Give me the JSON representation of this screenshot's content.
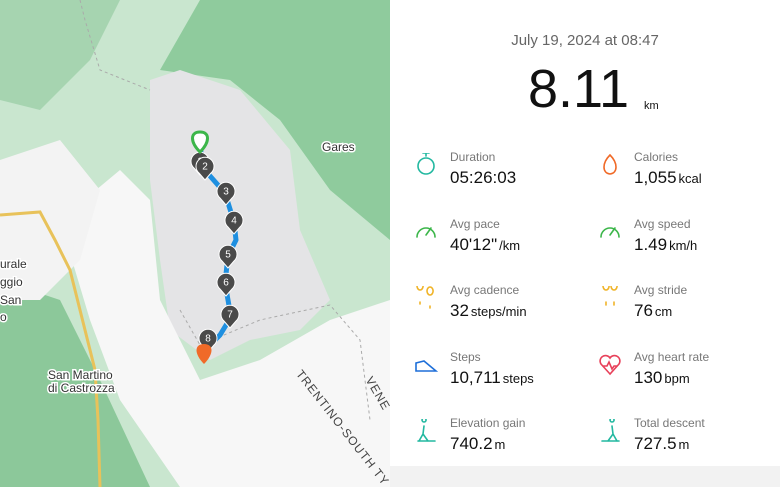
{
  "map": {
    "labels": [
      "Gares",
      "San Martino",
      "di Castrozza",
      "urale",
      "ggio",
      "San",
      "o"
    ],
    "region_labels": [
      "TRENTINO-SOUTH TY",
      "VENE"
    ],
    "markers": [
      "1",
      "2",
      "3",
      "4",
      "5",
      "6",
      "7",
      "8"
    ]
  },
  "summary": {
    "date": "July 19, 2024 at 08:47",
    "distance": "8.11",
    "distance_unit": "km"
  },
  "stats": [
    {
      "label": "Duration",
      "value": "05:26:03"
    },
    {
      "label": "Calories",
      "value": "1,055",
      "unit": "kcal"
    },
    {
      "label": "Avg pace",
      "value": "40'12\"",
      "unit": "/km"
    },
    {
      "label": "Avg speed",
      "value": "1.49",
      "unit": "km/h"
    },
    {
      "label": "Avg cadence",
      "value": "32",
      "unit": "steps/min"
    },
    {
      "label": "Avg stride",
      "value": "76",
      "unit": "cm"
    },
    {
      "label": "Steps",
      "value": "10,711",
      "unit": "steps"
    },
    {
      "label": "Avg heart rate",
      "value": "130",
      "unit": "bpm"
    },
    {
      "label": "Elevation gain",
      "value": "740.2",
      "unit": "m"
    },
    {
      "label": "Total descent",
      "value": "727.5",
      "unit": "m"
    }
  ]
}
